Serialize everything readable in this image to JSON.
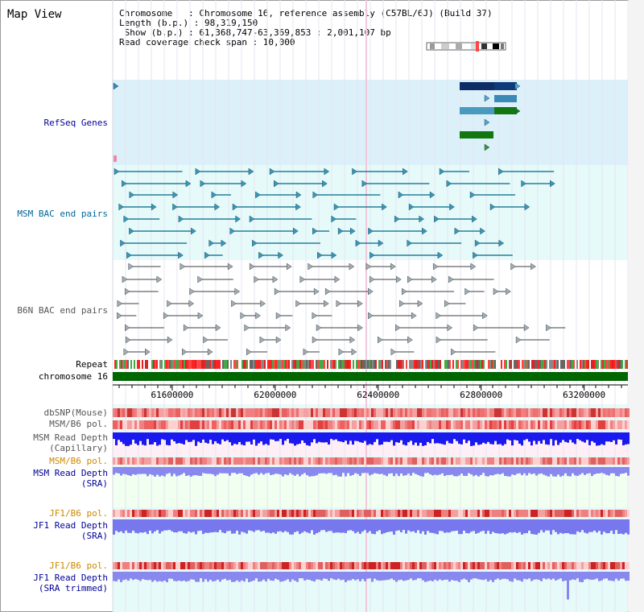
{
  "title": "Map View",
  "info": {
    "line1": "Chromosome   : Chromosome 16, reference assembly (C57BL/6J) (Build 37)",
    "line2": "Length (b.p.) : 98,319,150",
    "line3": " Show (b.p.) : 61,368,747-63,369,853 : 2,001,107 bp",
    "line4": "Read coverage check span : 10,000"
  },
  "tracks": {
    "refseq": "RefSeq Genes",
    "msm_bac": "MSM BAC end pairs",
    "b6n_bac": "B6N BAC end pairs",
    "repeat": "Repeat",
    "chromosome": "chromosome 16",
    "dbsnp": "dbSNP(Mouse)",
    "msm_pol": "MSM/B6 pol.",
    "msm_depth_cap": "MSM Read Depth\n(Capillary)",
    "msm_pol2": "MSM/B6 pol.",
    "msm_depth_sra": "MSM Read Depth\n(SRA)",
    "jf1_pol": "JF1/B6 pol.",
    "jf1_depth_sra": "JF1 Read Depth\n(SRA)",
    "jf1_pol2": "JF1/B6 pol.",
    "jf1_depth_trim": "JF1 Read Depth\n(SRA trimmed)"
  },
  "axis": {
    "ticks": [
      "61600000",
      "62000000",
      "62400000",
      "62800000",
      "63200000"
    ],
    "range": [
      61368747,
      63369853
    ]
  },
  "colors": {
    "label_blue": "#000099",
    "label_teal": "#006699",
    "label_gray": "#555555",
    "label_orange": "#cc8800",
    "refseq_bg": "#dcf0fa",
    "msm_bg": "#e6fafa",
    "chrom_green": "#006600",
    "depth_blue": "#0000dd",
    "depth_lav": "#8888ee"
  }
}
